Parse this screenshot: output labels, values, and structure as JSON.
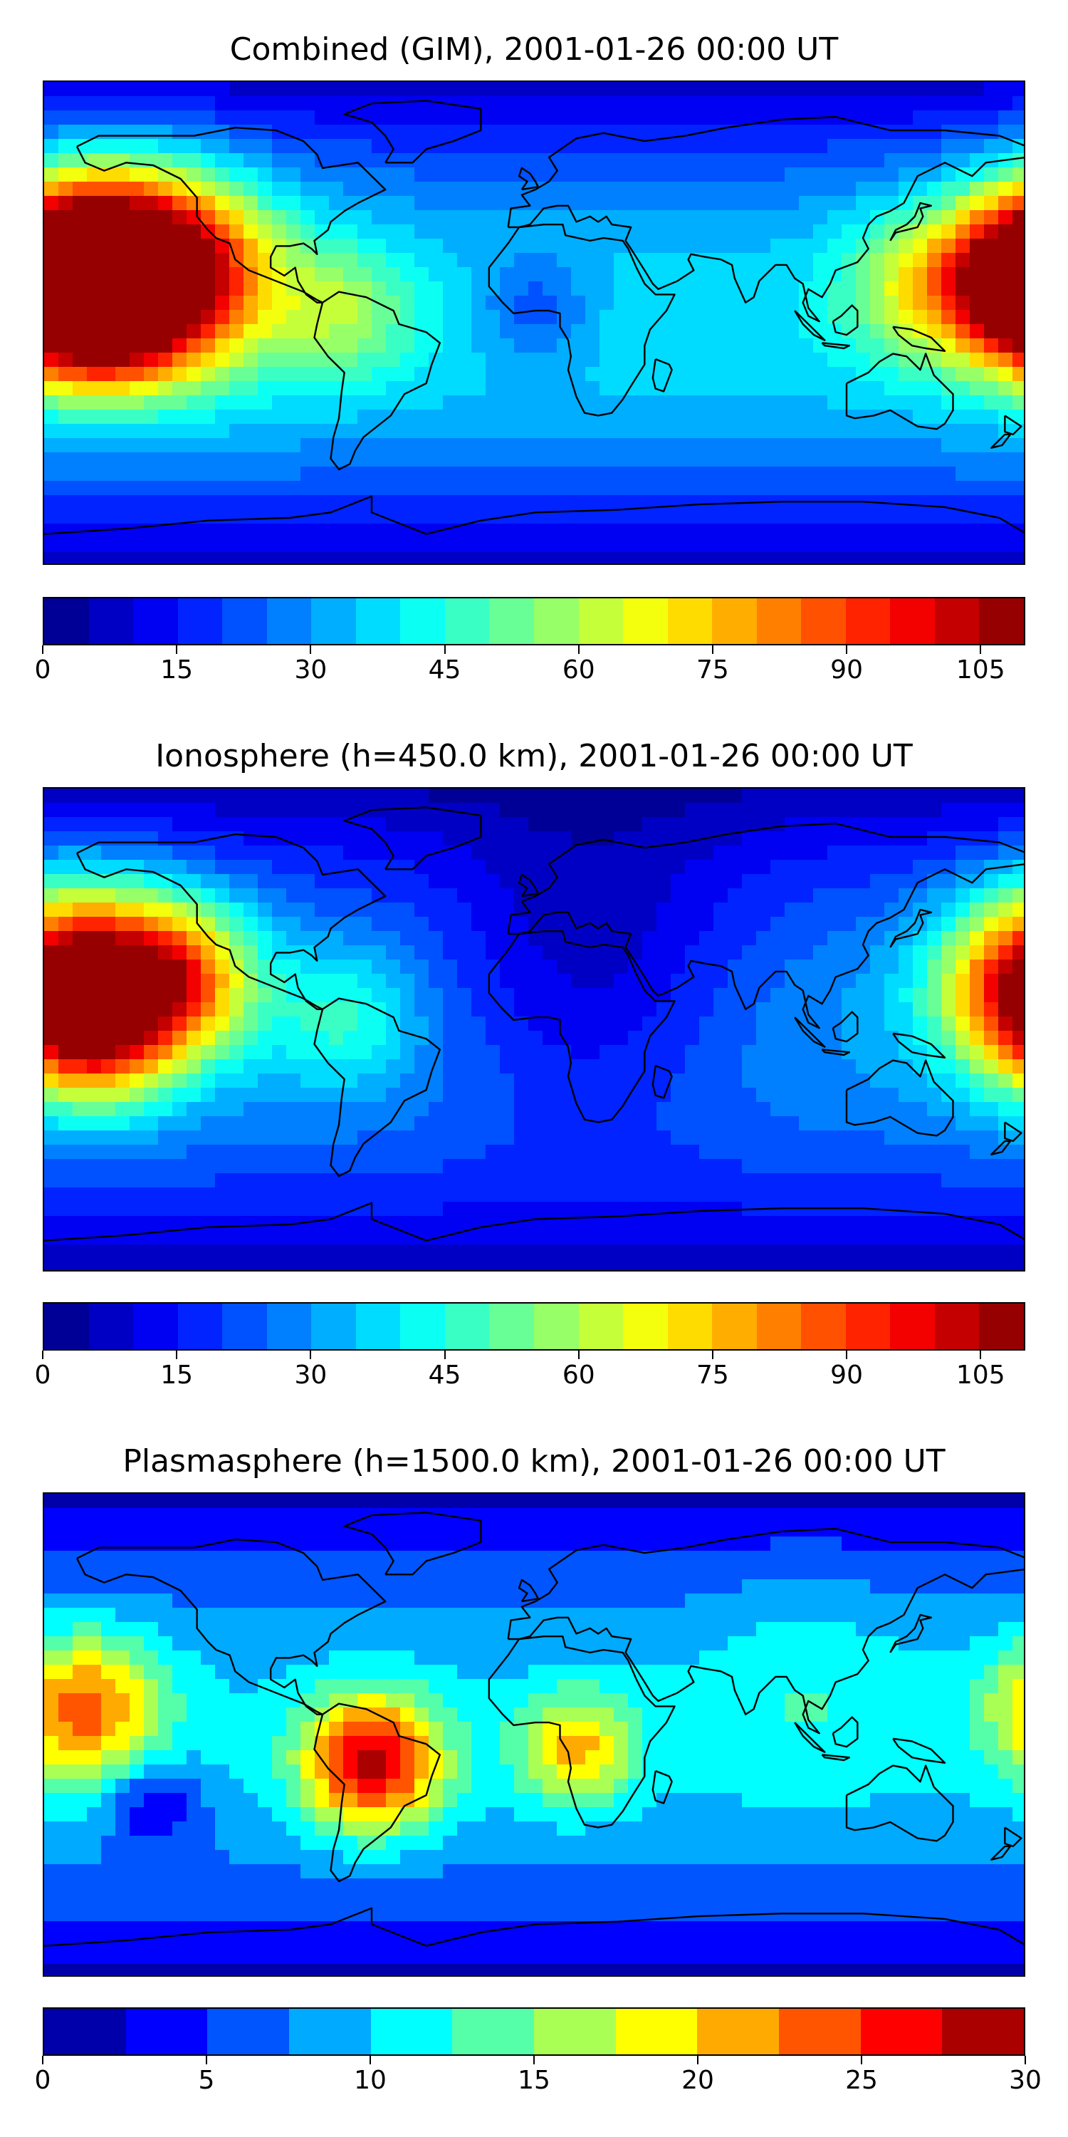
{
  "panels": [
    {
      "title": "Combined (GIM), 2001-01-26 00:00 UT",
      "colorbar": {
        "levels": 22,
        "min": 0,
        "max": 110,
        "ticks": [
          0,
          15,
          30,
          45,
          60,
          75,
          90,
          105
        ],
        "tick_labels": [
          "0",
          "15",
          "30",
          "45",
          "60",
          "75",
          "90",
          "105"
        ]
      },
      "hotspots": [
        {
          "lon": -165,
          "lat": 25,
          "v": 100,
          "s": 25
        },
        {
          "lon": -130,
          "lat": 20,
          "v": 100,
          "s": 25
        },
        {
          "lon": -160,
          "lat": 5,
          "v": 85,
          "s": 20
        },
        {
          "lon": 175,
          "lat": 15,
          "v": 80,
          "s": 20
        },
        {
          "lon": -70,
          "lat": 5,
          "v": 55,
          "s": 18
        },
        {
          "lon": 140,
          "lat": 15,
          "v": 60,
          "s": 20
        },
        {
          "lon": 0,
          "lat": 5,
          "v": 20,
          "s": 15
        }
      ],
      "base": 35
    },
    {
      "title": "Ionosphere  (h=450.0 km), 2001-01-26 00:00 UT",
      "colorbar": {
        "levels": 22,
        "min": 0,
        "max": 110,
        "ticks": [
          0,
          15,
          30,
          45,
          60,
          75,
          90,
          105
        ],
        "tick_labels": [
          "0",
          "15",
          "30",
          "45",
          "60",
          "75",
          "90",
          "105"
        ]
      },
      "hotspots": [
        {
          "lon": -165,
          "lat": 25,
          "v": 75,
          "s": 25
        },
        {
          "lon": -130,
          "lat": 20,
          "v": 78,
          "s": 20
        },
        {
          "lon": -160,
          "lat": 0,
          "v": 75,
          "s": 20
        },
        {
          "lon": 175,
          "lat": 15,
          "v": 65,
          "s": 22
        },
        {
          "lon": -70,
          "lat": 5,
          "v": 45,
          "s": 18
        },
        {
          "lon": 20,
          "lat": 20,
          "v": 8,
          "s": 40
        }
      ],
      "base": 28
    },
    {
      "title": "Plasmasphere (h=1500.0 km), 2001-01-26 00:00 UT",
      "colorbar": {
        "levels": 12,
        "min": 0,
        "max": 30,
        "ticks": [
          0,
          5,
          10,
          15,
          20,
          25,
          30
        ],
        "tick_labels": [
          "0",
          "5",
          "10",
          "15",
          "20",
          "25",
          "30"
        ]
      },
      "hotspots": [
        {
          "lon": -60,
          "lat": -10,
          "v": 28,
          "s": 18
        },
        {
          "lon": -165,
          "lat": 10,
          "v": 23,
          "s": 20
        },
        {
          "lon": 15,
          "lat": -5,
          "v": 20,
          "s": 15
        },
        {
          "lon": 100,
          "lat": 20,
          "v": 12,
          "s": 30
        },
        {
          "lon": -140,
          "lat": -25,
          "v": 2,
          "s": 12
        }
      ],
      "base": 9
    }
  ]
}
